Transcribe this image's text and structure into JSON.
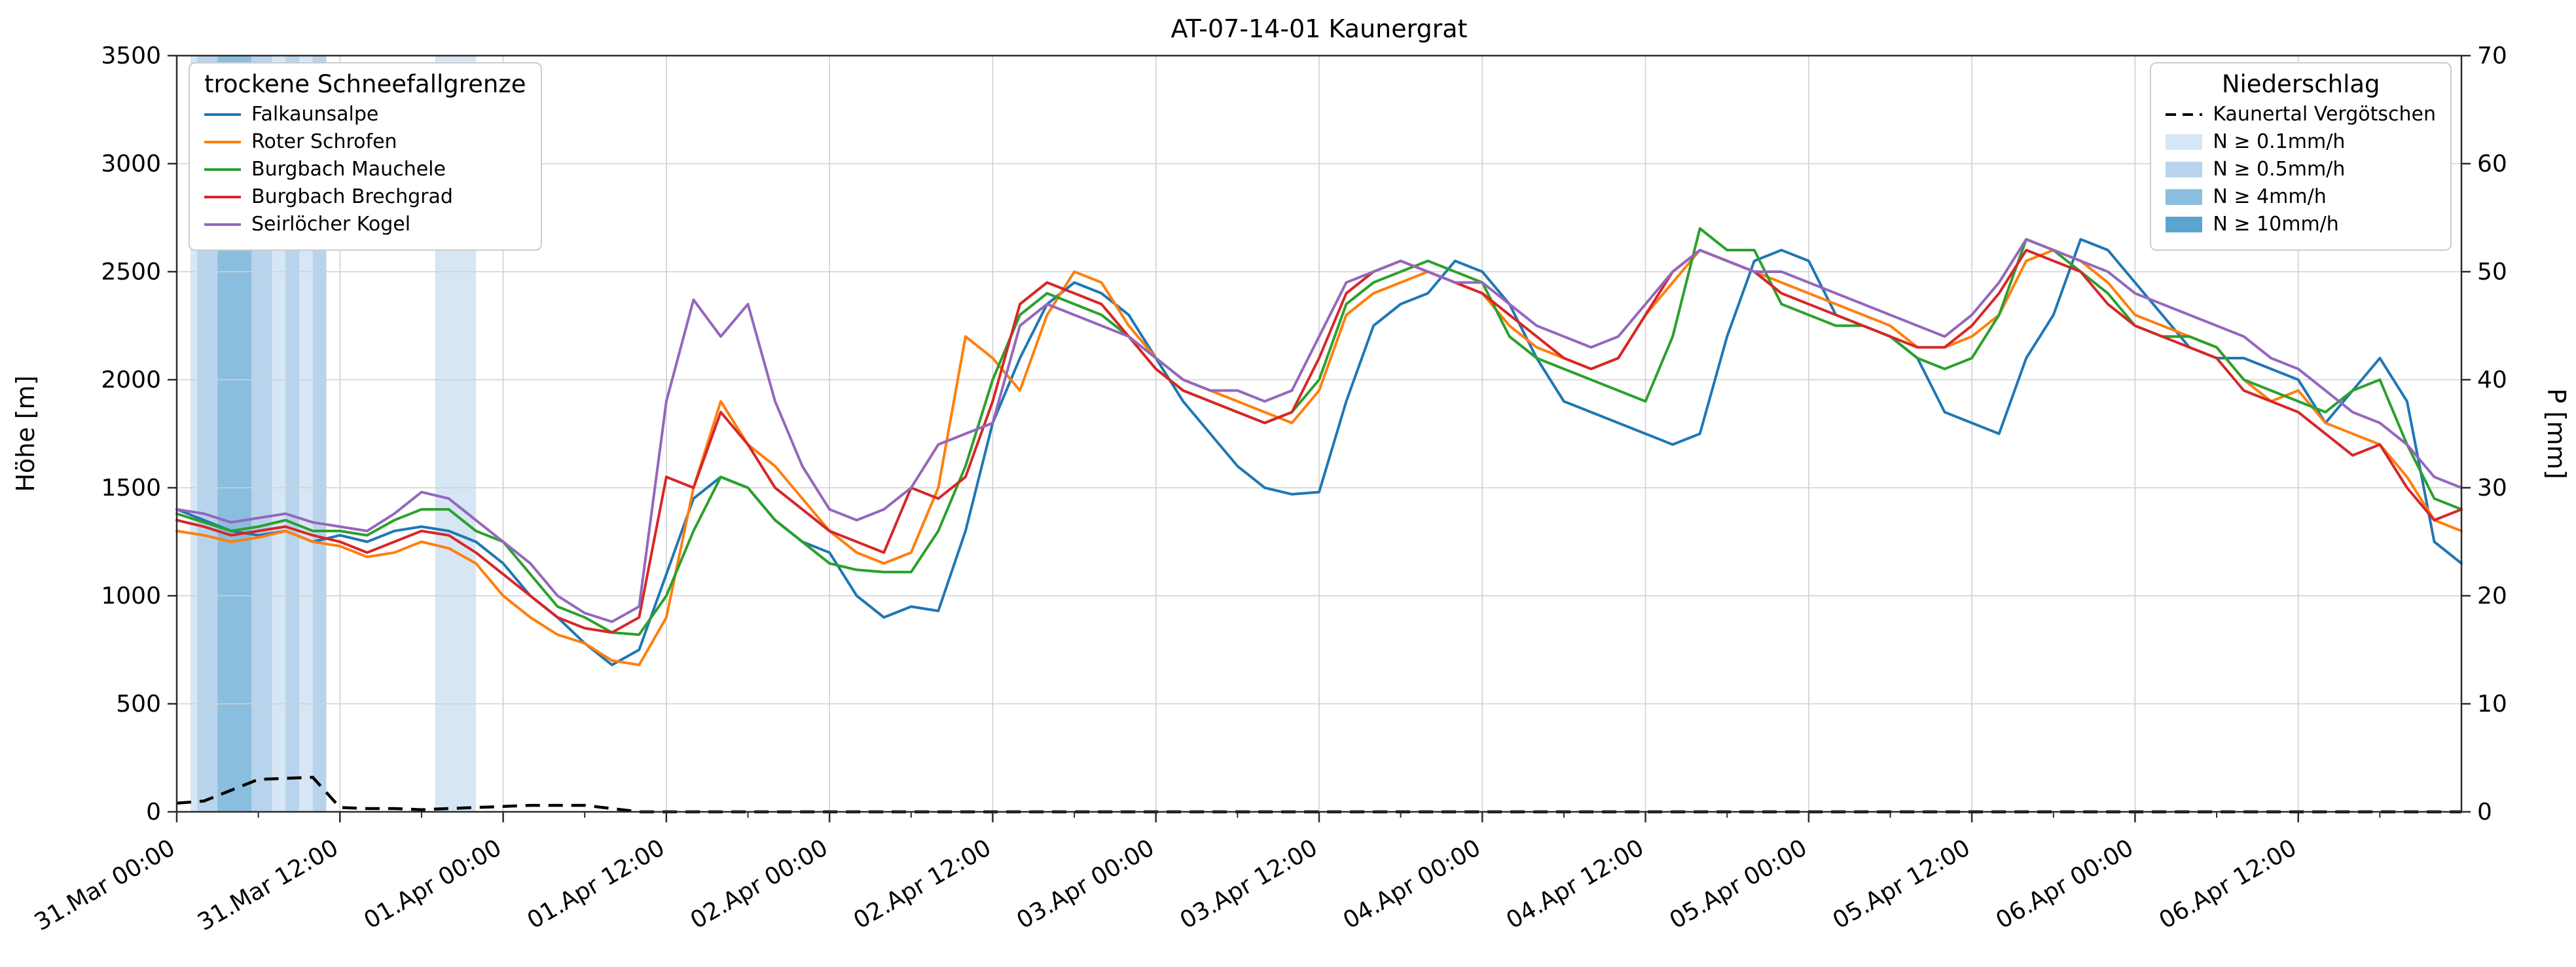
{
  "title": "AT-07-14-01 Kaunergrat",
  "axes": {
    "left_label": "Höhe [m]",
    "right_label": "P [mm]"
  },
  "legend_sfg": {
    "title": "trockene Schneefallgrenze"
  },
  "legend_precip": {
    "title": "Niederschlag",
    "line_label": "Kaunertal Vergötschen",
    "levels": [
      {
        "label": "N ≥ 0.1mm/h",
        "color": "#d6e6f4"
      },
      {
        "label": "N ≥ 0.5mm/h",
        "color": "#b7d4ec"
      },
      {
        "label": "N ≥ 4mm/h",
        "color": "#8abede"
      },
      {
        "label": "N ≥ 10mm/h",
        "color": "#5ba3d0"
      }
    ]
  },
  "chart_data": {
    "type": "line",
    "title": "AT-07-14-01 Kaunergrat",
    "xlabel": "",
    "ylabel": "Höhe [m]",
    "y2label": "P [mm]",
    "ylim": [
      0,
      3500
    ],
    "y2lim": [
      0,
      70
    ],
    "grid": true,
    "x_unit": "hours since 31.Mar 00:00",
    "x_hours_max": 168,
    "x_step_hours": 2,
    "x_minor_step_hours": 6,
    "y_ticks": [
      0,
      500,
      1000,
      1500,
      2000,
      2500,
      3000,
      3500
    ],
    "y2_ticks": [
      0,
      10,
      20,
      30,
      40,
      50,
      60,
      70
    ],
    "x_ticks": [
      {
        "t": 0,
        "label": "31.Mar 00:00"
      },
      {
        "t": 12,
        "label": "31.Mar 12:00"
      },
      {
        "t": 24,
        "label": "01.Apr 00:00"
      },
      {
        "t": 36,
        "label": "01.Apr 12:00"
      },
      {
        "t": 48,
        "label": "02.Apr 00:00"
      },
      {
        "t": 60,
        "label": "02.Apr 12:00"
      },
      {
        "t": 72,
        "label": "03.Apr 00:00"
      },
      {
        "t": 84,
        "label": "03.Apr 12:00"
      },
      {
        "t": 96,
        "label": "04.Apr 00:00"
      },
      {
        "t": 108,
        "label": "04.Apr 12:00"
      },
      {
        "t": 120,
        "label": "05.Apr 00:00"
      },
      {
        "t": 132,
        "label": "05.Apr 12:00"
      },
      {
        "t": 144,
        "label": "06.Apr 00:00"
      },
      {
        "t": 156,
        "label": "06.Apr 12:00"
      }
    ],
    "series": [
      {
        "name": "Falkaunsalpe",
        "color": "#1f77b4",
        "values": [
          1400,
          1350,
          1300,
          1280,
          1300,
          1250,
          1280,
          1250,
          1300,
          1320,
          1300,
          1250,
          1150,
          1000,
          900,
          780,
          680,
          750,
          1100,
          1450,
          1550,
          1500,
          1350,
          1250,
          1200,
          1000,
          900,
          950,
          930,
          1300,
          1800,
          2100,
          2350,
          2450,
          2400,
          2300,
          2100,
          1900,
          1750,
          1600,
          1500,
          1470,
          1480,
          1900,
          2250,
          2350,
          2400,
          2550,
          2500,
          2350,
          2100,
          1900,
          1850,
          1800,
          1750,
          1700,
          1750,
          2200,
          2550,
          2600,
          2550,
          2300,
          2250,
          2200,
          2100,
          1850,
          1800,
          1750,
          2100,
          2300,
          2650,
          2600,
          2450,
          2300,
          2150,
          2100,
          2100,
          2050,
          2000,
          1800,
          1950,
          2100,
          1900,
          1250,
          1150
        ]
      },
      {
        "name": "Roter Schrofen",
        "color": "#ff7f0e",
        "values": [
          1300,
          1280,
          1250,
          1270,
          1300,
          1250,
          1230,
          1180,
          1200,
          1250,
          1220,
          1150,
          1000,
          900,
          820,
          780,
          700,
          680,
          900,
          1500,
          1900,
          1700,
          1600,
          1450,
          1300,
          1200,
          1150,
          1200,
          1500,
          2200,
          2100,
          1950,
          2300,
          2500,
          2450,
          2250,
          2100,
          2000,
          1950,
          1900,
          1850,
          1800,
          1950,
          2300,
          2400,
          2450,
          2500,
          2450,
          2400,
          2250,
          2150,
          2100,
          2050,
          2100,
          2300,
          2450,
          2600,
          2550,
          2500,
          2450,
          2400,
          2350,
          2300,
          2250,
          2150,
          2150,
          2200,
          2300,
          2550,
          2600,
          2550,
          2450,
          2300,
          2250,
          2200,
          2150,
          2000,
          1900,
          1950,
          1800,
          1750,
          1700,
          1550,
          1350,
          1300
        ]
      },
      {
        "name": "Burgbach Mauchele",
        "color": "#2ca02c",
        "values": [
          1380,
          1340,
          1300,
          1320,
          1350,
          1300,
          1300,
          1280,
          1350,
          1400,
          1400,
          1300,
          1250,
          1100,
          950,
          900,
          830,
          820,
          1000,
          1300,
          1550,
          1500,
          1350,
          1250,
          1150,
          1120,
          1110,
          1110,
          1300,
          1600,
          2000,
          2300,
          2400,
          2350,
          2300,
          2200,
          2050,
          1950,
          1900,
          1850,
          1800,
          1850,
          2000,
          2350,
          2450,
          2500,
          2550,
          2500,
          2450,
          2200,
          2100,
          2050,
          2000,
          1950,
          1900,
          2200,
          2700,
          2600,
          2600,
          2350,
          2300,
          2250,
          2250,
          2200,
          2100,
          2050,
          2100,
          2300,
          2650,
          2600,
          2500,
          2400,
          2250,
          2200,
          2200,
          2150,
          2000,
          1950,
          1900,
          1850,
          1950,
          2000,
          1700,
          1450,
          1400
        ]
      },
      {
        "name": "Burgbach Brechgrad",
        "color": "#d62728",
        "values": [
          1350,
          1320,
          1280,
          1300,
          1320,
          1280,
          1250,
          1200,
          1250,
          1300,
          1280,
          1200,
          1100,
          1000,
          900,
          850,
          830,
          900,
          1550,
          1500,
          1850,
          1700,
          1500,
          1400,
          1300,
          1250,
          1200,
          1500,
          1450,
          1550,
          1900,
          2350,
          2450,
          2400,
          2350,
          2200,
          2050,
          1950,
          1900,
          1850,
          1800,
          1850,
          2100,
          2400,
          2500,
          2550,
          2500,
          2450,
          2400,
          2300,
          2200,
          2100,
          2050,
          2100,
          2300,
          2500,
          2600,
          2550,
          2500,
          2400,
          2350,
          2300,
          2250,
          2200,
          2150,
          2150,
          2250,
          2400,
          2600,
          2550,
          2500,
          2350,
          2250,
          2200,
          2150,
          2100,
          1950,
          1900,
          1850,
          1750,
          1650,
          1700,
          1500,
          1350,
          1400
        ]
      },
      {
        "name": "Seirlöcher Kogel",
        "color": "#9467bd",
        "values": [
          1400,
          1380,
          1340,
          1360,
          1380,
          1340,
          1320,
          1300,
          1380,
          1480,
          1450,
          1350,
          1250,
          1150,
          1000,
          920,
          880,
          950,
          1900,
          2370,
          2200,
          2350,
          1900,
          1600,
          1400,
          1350,
          1400,
          1500,
          1700,
          1750,
          1800,
          2250,
          2350,
          2300,
          2250,
          2200,
          2100,
          2000,
          1950,
          1950,
          1900,
          1950,
          2200,
          2450,
          2500,
          2550,
          2500,
          2450,
          2450,
          2350,
          2250,
          2200,
          2150,
          2200,
          2350,
          2500,
          2600,
          2550,
          2500,
          2500,
          2450,
          2400,
          2350,
          2300,
          2250,
          2200,
          2300,
          2450,
          2650,
          2600,
          2550,
          2500,
          2400,
          2350,
          2300,
          2250,
          2200,
          2100,
          2050,
          1950,
          1850,
          1800,
          1700,
          1550,
          1500
        ]
      }
    ],
    "precip_line": {
      "name": "Kaunertal Vergötschen",
      "axis": "right",
      "color": "#000000",
      "style": "dashed",
      "values": [
        0.8,
        1.0,
        2.0,
        3.0,
        3.1,
        3.2,
        0.4,
        0.3,
        0.3,
        0.2,
        0.3,
        0.4,
        0.5,
        0.6,
        0.6,
        0.6,
        0.3,
        0.0,
        0,
        0,
        0,
        0,
        0,
        0,
        0,
        0,
        0,
        0,
        0,
        0,
        0,
        0,
        0,
        0,
        0,
        0,
        0,
        0,
        0,
        0,
        0,
        0,
        0,
        0,
        0,
        0,
        0,
        0,
        0,
        0,
        0,
        0,
        0,
        0,
        0,
        0,
        0,
        0,
        0,
        0,
        0,
        0,
        0,
        0,
        0,
        0,
        0,
        0,
        0,
        0,
        0,
        0,
        0,
        0,
        0,
        0,
        0,
        0,
        0,
        0,
        0,
        0,
        0,
        0,
        0
      ]
    },
    "precip_bands": [
      {
        "from": 1,
        "to": 11,
        "level": 0
      },
      {
        "from": 1.5,
        "to": 3,
        "level": 1
      },
      {
        "from": 3,
        "to": 5.5,
        "level": 2
      },
      {
        "from": 5.5,
        "to": 7,
        "level": 1
      },
      {
        "from": 8,
        "to": 9,
        "level": 1
      },
      {
        "from": 10,
        "to": 11,
        "level": 1
      },
      {
        "from": 19,
        "to": 22,
        "level": 0
      }
    ]
  }
}
